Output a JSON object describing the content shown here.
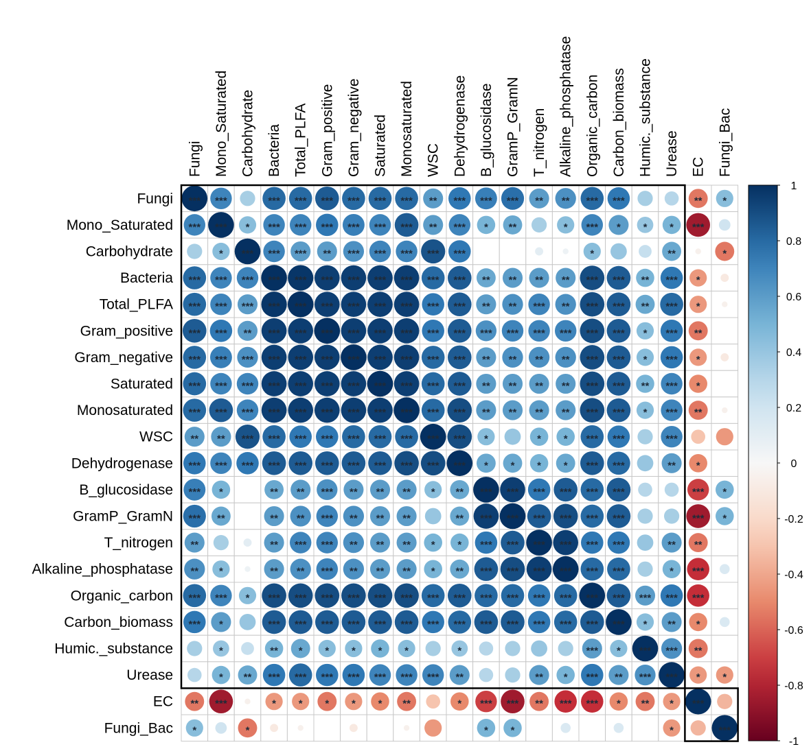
{
  "chart_data": {
    "type": "heatmap",
    "style": "correlation circles with significance stars",
    "variables": [
      "Fungi",
      "Mono_Saturated",
      "Carbohydrate",
      "Bacteria",
      "Total_PLFA",
      "Gram_positive",
      "Gram_negative",
      "Saturated",
      "Monosaturated",
      "WSC",
      "Dehydrogenase",
      "B_glucosidase",
      "GramP_GramN",
      "T_nitrogen",
      "Alkaline_phosphatase",
      "Organic_carbon",
      "Carbon_biomass",
      "Humic._substance",
      "Urease",
      "EC",
      "Fungi_Bac"
    ],
    "matrix": [
      [
        1.0,
        0.7,
        0.35,
        0.8,
        0.8,
        0.85,
        0.8,
        0.8,
        0.8,
        0.6,
        0.75,
        0.72,
        0.78,
        0.6,
        0.65,
        0.8,
        0.75,
        0.35,
        0.3,
        -0.55,
        0.45
      ],
      [
        0.7,
        1.0,
        0.45,
        0.7,
        0.7,
        0.75,
        0.72,
        0.7,
        0.85,
        0.6,
        0.7,
        0.5,
        0.55,
        0.35,
        0.45,
        0.7,
        0.6,
        0.4,
        0.5,
        -0.85,
        0.2
      ],
      [
        0.35,
        0.45,
        1.0,
        0.7,
        0.6,
        0.6,
        0.65,
        0.7,
        0.7,
        0.88,
        0.75,
        0.0,
        0.0,
        0.1,
        0.05,
        0.45,
        0.4,
        0.25,
        0.55,
        -0.05,
        -0.55
      ],
      [
        0.8,
        0.7,
        0.7,
        1.0,
        0.98,
        0.95,
        0.95,
        0.95,
        0.95,
        0.8,
        0.85,
        0.55,
        0.6,
        0.6,
        0.6,
        0.9,
        0.85,
        0.5,
        0.75,
        -0.45,
        -0.1
      ],
      [
        0.8,
        0.7,
        0.6,
        0.98,
        1.0,
        0.95,
        0.95,
        0.95,
        0.95,
        0.75,
        0.85,
        0.6,
        0.65,
        0.7,
        0.65,
        0.9,
        0.85,
        0.55,
        0.8,
        -0.45,
        -0.05
      ],
      [
        0.85,
        0.75,
        0.6,
        0.95,
        0.95,
        1.0,
        0.95,
        0.95,
        0.95,
        0.75,
        0.85,
        0.65,
        0.7,
        0.7,
        0.7,
        0.9,
        0.85,
        0.45,
        0.75,
        -0.55,
        0.0
      ],
      [
        0.8,
        0.72,
        0.65,
        0.95,
        0.95,
        0.95,
        1.0,
        0.95,
        0.95,
        0.8,
        0.85,
        0.6,
        0.65,
        0.65,
        0.65,
        0.9,
        0.85,
        0.45,
        0.75,
        -0.45,
        -0.1
      ],
      [
        0.8,
        0.7,
        0.7,
        0.95,
        0.95,
        0.95,
        0.95,
        1.0,
        0.95,
        0.8,
        0.85,
        0.6,
        0.6,
        0.6,
        0.6,
        0.9,
        0.85,
        0.5,
        0.7,
        -0.5,
        0.0
      ],
      [
        0.8,
        0.85,
        0.7,
        0.95,
        0.95,
        0.95,
        0.95,
        0.95,
        1.0,
        0.8,
        0.9,
        0.6,
        0.6,
        0.6,
        0.6,
        0.9,
        0.85,
        0.45,
        0.7,
        -0.55,
        -0.05
      ],
      [
        0.6,
        0.6,
        0.88,
        0.8,
        0.75,
        0.75,
        0.8,
        0.8,
        0.8,
        1.0,
        0.9,
        0.45,
        0.4,
        0.5,
        0.5,
        0.8,
        0.75,
        0.35,
        0.7,
        -0.3,
        -0.45
      ],
      [
        0.75,
        0.7,
        0.75,
        0.85,
        0.85,
        0.85,
        0.85,
        0.85,
        0.9,
        0.9,
        1.0,
        0.55,
        0.55,
        0.5,
        0.55,
        0.85,
        0.8,
        0.4,
        0.6,
        -0.5,
        0.0
      ],
      [
        0.72,
        0.5,
        0.0,
        0.55,
        0.6,
        0.65,
        0.6,
        0.6,
        0.6,
        0.45,
        0.55,
        1.0,
        0.95,
        0.75,
        0.85,
        0.8,
        0.85,
        0.3,
        0.3,
        -0.7,
        0.5
      ],
      [
        0.78,
        0.55,
        0.0,
        0.6,
        0.65,
        0.7,
        0.65,
        0.6,
        0.6,
        0.4,
        0.55,
        0.95,
        1.0,
        0.85,
        0.9,
        0.8,
        0.85,
        0.35,
        0.35,
        -0.85,
        0.5
      ],
      [
        0.6,
        0.35,
        0.1,
        0.6,
        0.7,
        0.7,
        0.65,
        0.6,
        0.6,
        0.5,
        0.5,
        0.75,
        0.85,
        1.0,
        0.95,
        0.75,
        0.75,
        0.4,
        0.6,
        -0.55,
        0.0
      ],
      [
        0.65,
        0.45,
        0.05,
        0.6,
        0.65,
        0.7,
        0.65,
        0.6,
        0.6,
        0.5,
        0.55,
        0.85,
        0.9,
        0.95,
        1.0,
        0.8,
        0.8,
        0.35,
        0.5,
        -0.75,
        0.15
      ],
      [
        0.8,
        0.7,
        0.45,
        0.9,
        0.9,
        0.9,
        0.9,
        0.9,
        0.9,
        0.8,
        0.85,
        0.8,
        0.8,
        0.75,
        0.8,
        1.0,
        0.85,
        0.6,
        0.75,
        -0.75,
        0.0
      ],
      [
        0.75,
        0.6,
        0.4,
        0.85,
        0.85,
        0.85,
        0.85,
        0.85,
        0.85,
        0.75,
        0.8,
        0.85,
        0.85,
        0.75,
        0.8,
        0.85,
        1.0,
        0.45,
        0.6,
        -0.5,
        0.15
      ],
      [
        0.35,
        0.4,
        0.25,
        0.5,
        0.55,
        0.45,
        0.45,
        0.5,
        0.45,
        0.35,
        0.4,
        0.3,
        0.35,
        0.4,
        0.35,
        0.6,
        0.45,
        1.0,
        0.65,
        -0.55,
        0.0
      ],
      [
        0.3,
        0.5,
        0.55,
        0.75,
        0.8,
        0.75,
        0.75,
        0.7,
        0.7,
        0.7,
        0.6,
        0.3,
        0.35,
        0.6,
        0.5,
        0.75,
        0.6,
        0.65,
        1.0,
        -0.45,
        -0.45
      ],
      [
        -0.55,
        -0.85,
        -0.05,
        -0.45,
        -0.45,
        -0.55,
        -0.45,
        -0.5,
        -0.55,
        -0.3,
        -0.5,
        -0.7,
        -0.85,
        -0.55,
        -0.75,
        -0.75,
        -0.5,
        -0.55,
        -0.45,
        1.0,
        -0.35
      ],
      [
        0.45,
        0.2,
        -0.55,
        -0.1,
        -0.05,
        0.0,
        -0.1,
        0.0,
        -0.05,
        -0.45,
        0.0,
        0.5,
        0.5,
        0.0,
        0.15,
        0.0,
        0.15,
        0.0,
        -0.45,
        -0.35,
        1.0
      ]
    ],
    "stars": [
      [
        "***",
        "***",
        "",
        "***",
        "***",
        "***",
        "***",
        "***",
        "***",
        "**",
        "***",
        "***",
        "***",
        "**",
        "**",
        "***",
        "***",
        "",
        "",
        "**",
        "*"
      ],
      [
        "***",
        "***",
        "*",
        "***",
        "***",
        "***",
        "***",
        "***",
        "***",
        "**",
        "***",
        "*",
        "**",
        "",
        "*",
        "***",
        "*",
        "*",
        "*",
        "***",
        ""
      ],
      [
        "",
        "*",
        "***",
        "***",
        "***",
        "**",
        "***",
        "***",
        "***",
        "***",
        "***",
        "",
        "",
        "",
        "",
        "*",
        "",
        "",
        "**",
        "",
        "*"
      ],
      [
        "***",
        "***",
        "***",
        "***",
        "***",
        "***",
        "***",
        "***",
        "***",
        "***",
        "***",
        "**",
        "**",
        "**",
        "**",
        "***",
        "***",
        "**",
        "***",
        "*",
        ""
      ],
      [
        "***",
        "***",
        "***",
        "***",
        "***",
        "***",
        "***",
        "***",
        "***",
        "***",
        "***",
        "**",
        "**",
        "***",
        "**",
        "***",
        "***",
        "**",
        "***",
        "*",
        ""
      ],
      [
        "***",
        "***",
        "**",
        "***",
        "***",
        "***",
        "***",
        "***",
        "***",
        "***",
        "***",
        "***",
        "***",
        "***",
        "***",
        "***",
        "***",
        "*",
        "***",
        "**",
        ""
      ],
      [
        "***",
        "***",
        "***",
        "***",
        "***",
        "***",
        "***",
        "***",
        "***",
        "***",
        "***",
        "**",
        "**",
        "**",
        "**",
        "***",
        "***",
        "*",
        "***",
        "*",
        ""
      ],
      [
        "***",
        "***",
        "***",
        "***",
        "***",
        "***",
        "***",
        "***",
        "***",
        "***",
        "***",
        "**",
        "**",
        "**",
        "**",
        "***",
        "***",
        "**",
        "***",
        "*",
        ""
      ],
      [
        "***",
        "***",
        "***",
        "***",
        "***",
        "***",
        "***",
        "***",
        "***",
        "***",
        "***",
        "**",
        "**",
        "**",
        "**",
        "***",
        "***",
        "*",
        "***",
        "**",
        ""
      ],
      [
        "**",
        "**",
        "***",
        "***",
        "***",
        "***",
        "***",
        "***",
        "***",
        "***",
        "***",
        "*",
        "",
        "*",
        "*",
        "***",
        "***",
        "",
        "***",
        "",
        ""
      ],
      [
        "***",
        "***",
        "***",
        "***",
        "***",
        "***",
        "***",
        "***",
        "***",
        "***",
        "***",
        "*",
        "*",
        "*",
        "*",
        "***",
        "***",
        "",
        "**",
        "*",
        ""
      ],
      [
        "***",
        "*",
        "",
        "**",
        "**",
        "***",
        "**",
        "**",
        "**",
        "*",
        "**",
        "***",
        "***",
        "***",
        "***",
        "***",
        "***",
        "",
        "",
        "***",
        "*"
      ],
      [
        "***",
        "**",
        "",
        "**",
        "**",
        "***",
        "**",
        "**",
        "**",
        "",
        "**",
        "***",
        "***",
        "***",
        "***",
        "***",
        "***",
        "",
        "",
        "***",
        "*"
      ],
      [
        "**",
        "",
        "",
        "**",
        "***",
        "***",
        "**",
        "**",
        "**",
        "*",
        "*",
        "***",
        "***",
        "***",
        "***",
        "***",
        "***",
        "",
        "**",
        "**",
        ""
      ],
      [
        "**",
        "*",
        "",
        "**",
        "**",
        "***",
        "**",
        "**",
        "**",
        "*",
        "**",
        "***",
        "***",
        "***",
        "***",
        "***",
        "***",
        "",
        "*",
        "***",
        ""
      ],
      [
        "***",
        "***",
        "*",
        "***",
        "***",
        "***",
        "***",
        "***",
        "***",
        "***",
        "***",
        "***",
        "***",
        "***",
        "***",
        "***",
        "***",
        "***",
        "***",
        "***",
        ""
      ],
      [
        "***",
        "*",
        "",
        "***",
        "***",
        "***",
        "***",
        "***",
        "***",
        "***",
        "***",
        "***",
        "***",
        "***",
        "***",
        "***",
        "***",
        "*",
        "**",
        "*",
        ""
      ],
      [
        "",
        "*",
        "",
        "**",
        "*",
        "*",
        "*",
        "*",
        "*",
        "",
        "*",
        "",
        "",
        "",
        "",
        "***",
        "*",
        "***",
        "***",
        "**",
        ""
      ],
      [
        "",
        "*",
        "**",
        "***",
        "***",
        "***",
        "***",
        "***",
        "***",
        "***",
        "**",
        "",
        "",
        "**",
        "*",
        "***",
        "**",
        "***",
        "***",
        "*",
        "*"
      ],
      [
        "**",
        "***",
        "",
        "*",
        "*",
        "*",
        "*",
        "*",
        "**",
        "",
        "*",
        "***",
        "***",
        "**",
        "***",
        "***",
        "*",
        "**",
        "*",
        "***",
        ""
      ],
      [
        "*",
        "",
        "*",
        "",
        "",
        "",
        "",
        "",
        "",
        "",
        "",
        "*",
        "*",
        "",
        "",
        "",
        "",
        "",
        "*",
        "",
        "***"
      ]
    ],
    "colorbar": {
      "range": [
        -1,
        1
      ],
      "ticks": [
        "1",
        "0.8",
        "0.6",
        "0.4",
        "0.2",
        "0",
        "-0.2",
        "-0.4",
        "-0.6",
        "-0.8",
        "-1"
      ],
      "high_color": "#053061",
      "mid_color": "#f7f7f7",
      "low_color": "#67001f"
    },
    "clusters": [
      [
        0,
        18
      ],
      [
        19,
        20
      ]
    ]
  }
}
